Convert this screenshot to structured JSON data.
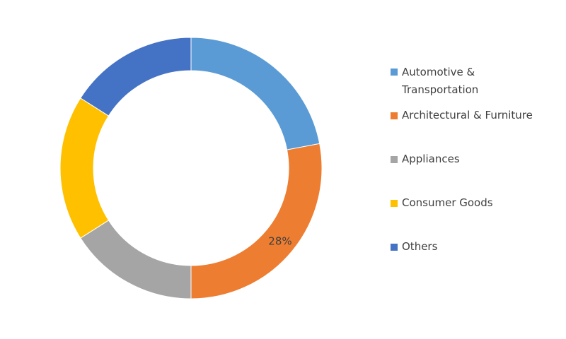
{
  "chart_data": {
    "type": "donut",
    "categories": [
      "Automotive & Transportation",
      "Architectural & Furniture",
      "Appliances",
      "Consumer Goods",
      "Others"
    ],
    "values": [
      22,
      28,
      16,
      18,
      16
    ],
    "value_labels": [
      null,
      "28%",
      null,
      null,
      null
    ],
    "colors": [
      "#5b9bd5",
      "#ed7d31",
      "#a5a5a5",
      "#ffc000",
      "#4472c4"
    ],
    "legend": "right"
  }
}
